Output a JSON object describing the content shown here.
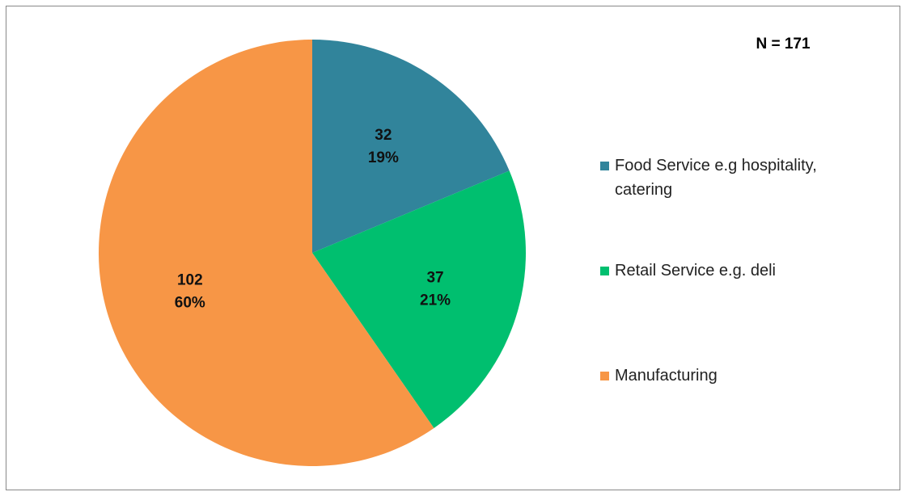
{
  "chart_data": {
    "type": "pie",
    "annotation": "N = 171",
    "categories": [
      "Food Service e.g hospitality, catering",
      "Retail Service e.g. deli",
      "Manufacturing"
    ],
    "values": [
      32,
      37,
      102
    ],
    "percent_labels": [
      "19%",
      "21%",
      "60%"
    ],
    "colors": [
      "#31849b",
      "#00bf6f",
      "#f79646"
    ]
  }
}
